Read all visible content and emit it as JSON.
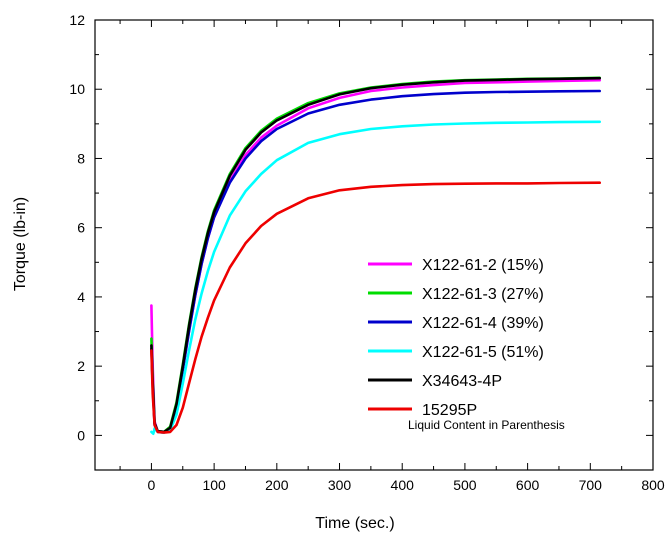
{
  "chart_data": {
    "type": "line",
    "title": "",
    "xlabel": "Time (sec.)",
    "ylabel": "Torque (lb-in)",
    "xlim": [
      -90,
      800
    ],
    "ylim": [
      -1,
      12
    ],
    "xticks": [
      0,
      100,
      200,
      300,
      400,
      500,
      600,
      700,
      800
    ],
    "yticks": [
      0,
      2,
      4,
      6,
      8,
      10,
      12
    ],
    "grid": false,
    "legend_position": "lower-right",
    "annotation": "Liquid Content in Parenthesis",
    "series": [
      {
        "name": "X122-61-2 (15%)",
        "color": "#ff00ff",
        "points": [
          [
            0,
            3.75
          ],
          [
            2,
            2.0
          ],
          [
            5,
            0.4
          ],
          [
            10,
            0.12
          ],
          [
            20,
            0.1
          ],
          [
            30,
            0.2
          ],
          [
            40,
            0.8
          ],
          [
            50,
            1.9
          ],
          [
            60,
            3.0
          ],
          [
            70,
            4.05
          ],
          [
            80,
            4.95
          ],
          [
            90,
            5.7
          ],
          [
            100,
            6.3
          ],
          [
            125,
            7.35
          ],
          [
            150,
            8.1
          ],
          [
            175,
            8.6
          ],
          [
            200,
            8.95
          ],
          [
            250,
            9.45
          ],
          [
            300,
            9.75
          ],
          [
            350,
            9.95
          ],
          [
            400,
            10.05
          ],
          [
            450,
            10.12
          ],
          [
            500,
            10.18
          ],
          [
            550,
            10.2
          ],
          [
            600,
            10.22
          ],
          [
            650,
            10.24
          ],
          [
            715,
            10.26
          ]
        ]
      },
      {
        "name": "X122-61-3 (27%)",
        "color": "#00dd00",
        "points": [
          [
            0,
            2.8
          ],
          [
            2,
            1.6
          ],
          [
            5,
            0.35
          ],
          [
            10,
            0.12
          ],
          [
            20,
            0.1
          ],
          [
            30,
            0.25
          ],
          [
            40,
            0.95
          ],
          [
            50,
            2.05
          ],
          [
            60,
            3.2
          ],
          [
            70,
            4.25
          ],
          [
            80,
            5.15
          ],
          [
            90,
            5.9
          ],
          [
            100,
            6.5
          ],
          [
            125,
            7.55
          ],
          [
            150,
            8.3
          ],
          [
            175,
            8.8
          ],
          [
            200,
            9.15
          ],
          [
            250,
            9.6
          ],
          [
            300,
            9.88
          ],
          [
            350,
            10.05
          ],
          [
            400,
            10.15
          ],
          [
            450,
            10.22
          ],
          [
            500,
            10.26
          ],
          [
            550,
            10.28
          ],
          [
            600,
            10.3
          ],
          [
            650,
            10.31
          ],
          [
            715,
            10.33
          ]
        ]
      },
      {
        "name": "X122-61-4 (39%)",
        "color": "#0000cc",
        "points": [
          [
            0,
            2.5
          ],
          [
            2,
            1.4
          ],
          [
            5,
            0.3
          ],
          [
            10,
            0.1
          ],
          [
            20,
            0.08
          ],
          [
            30,
            0.2
          ],
          [
            40,
            0.85
          ],
          [
            50,
            1.9
          ],
          [
            60,
            3.0
          ],
          [
            70,
            4.05
          ],
          [
            80,
            4.95
          ],
          [
            90,
            5.7
          ],
          [
            100,
            6.3
          ],
          [
            125,
            7.3
          ],
          [
            150,
            8.0
          ],
          [
            175,
            8.5
          ],
          [
            200,
            8.85
          ],
          [
            250,
            9.3
          ],
          [
            300,
            9.55
          ],
          [
            350,
            9.7
          ],
          [
            400,
            9.8
          ],
          [
            450,
            9.86
          ],
          [
            500,
            9.9
          ],
          [
            550,
            9.92
          ],
          [
            600,
            9.93
          ],
          [
            650,
            9.94
          ],
          [
            715,
            9.95
          ]
        ]
      },
      {
        "name": "X122-61-5 (51%)",
        "color": "#00ffff",
        "points": [
          [
            0,
            0.1
          ],
          [
            3,
            0.05
          ],
          [
            5,
            0.2
          ],
          [
            10,
            0.1
          ],
          [
            20,
            0.08
          ],
          [
            30,
            0.15
          ],
          [
            40,
            0.6
          ],
          [
            50,
            1.5
          ],
          [
            60,
            2.45
          ],
          [
            70,
            3.35
          ],
          [
            80,
            4.1
          ],
          [
            90,
            4.75
          ],
          [
            100,
            5.3
          ],
          [
            125,
            6.35
          ],
          [
            150,
            7.05
          ],
          [
            175,
            7.55
          ],
          [
            200,
            7.95
          ],
          [
            250,
            8.45
          ],
          [
            300,
            8.7
          ],
          [
            350,
            8.85
          ],
          [
            400,
            8.93
          ],
          [
            450,
            8.98
          ],
          [
            500,
            9.01
          ],
          [
            550,
            9.03
          ],
          [
            600,
            9.04
          ],
          [
            650,
            9.05
          ],
          [
            715,
            9.06
          ]
        ]
      },
      {
        "name": "X34643-4P",
        "color": "#000000",
        "points": [
          [
            0,
            2.6
          ],
          [
            2,
            1.5
          ],
          [
            5,
            0.35
          ],
          [
            10,
            0.12
          ],
          [
            20,
            0.1
          ],
          [
            30,
            0.22
          ],
          [
            40,
            0.9
          ],
          [
            50,
            2.0
          ],
          [
            60,
            3.15
          ],
          [
            70,
            4.2
          ],
          [
            80,
            5.1
          ],
          [
            90,
            5.85
          ],
          [
            100,
            6.45
          ],
          [
            125,
            7.5
          ],
          [
            150,
            8.25
          ],
          [
            175,
            8.75
          ],
          [
            200,
            9.1
          ],
          [
            250,
            9.55
          ],
          [
            300,
            9.85
          ],
          [
            350,
            10.03
          ],
          [
            400,
            10.13
          ],
          [
            450,
            10.2
          ],
          [
            500,
            10.25
          ],
          [
            550,
            10.27
          ],
          [
            600,
            10.29
          ],
          [
            650,
            10.3
          ],
          [
            715,
            10.32
          ]
        ]
      },
      {
        "name": "15295P",
        "color": "#ee0000",
        "points": [
          [
            0,
            2.45
          ],
          [
            2,
            1.2
          ],
          [
            5,
            0.3
          ],
          [
            10,
            0.1
          ],
          [
            20,
            0.08
          ],
          [
            30,
            0.1
          ],
          [
            40,
            0.3
          ],
          [
            50,
            0.8
          ],
          [
            60,
            1.5
          ],
          [
            70,
            2.2
          ],
          [
            80,
            2.85
          ],
          [
            90,
            3.4
          ],
          [
            100,
            3.9
          ],
          [
            125,
            4.85
          ],
          [
            150,
            5.55
          ],
          [
            175,
            6.05
          ],
          [
            200,
            6.4
          ],
          [
            250,
            6.85
          ],
          [
            300,
            7.08
          ],
          [
            350,
            7.18
          ],
          [
            400,
            7.23
          ],
          [
            450,
            7.26
          ],
          [
            500,
            7.27
          ],
          [
            550,
            7.28
          ],
          [
            600,
            7.28
          ],
          [
            650,
            7.29
          ],
          [
            715,
            7.3
          ]
        ]
      }
    ]
  }
}
